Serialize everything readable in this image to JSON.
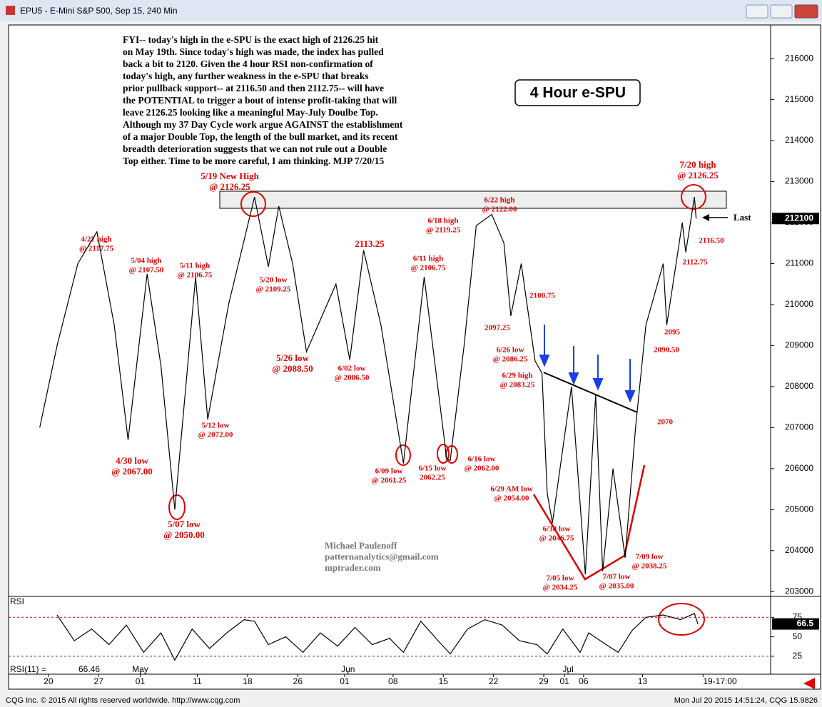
{
  "window": {
    "title": "EPU5 - E-Mini S&P 500, Sep 15, 240 Min"
  },
  "footer": {
    "left": "CQG Inc. © 2015 All rights reserved worldwide. http://www.cqg.com",
    "right": "Mon Jul 20 2015 14:51:24, CQG 15.9826"
  },
  "chart_data": {
    "type": "line",
    "title": "4 Hour e-SPU",
    "color": "#000000",
    "x": [
      18,
      28,
      40,
      51,
      61,
      69,
      80,
      88,
      96,
      108,
      115,
      127,
      142,
      150,
      156,
      164,
      172,
      189,
      197,
      205,
      215,
      228,
      240,
      253,
      255,
      263,
      270,
      279,
      286,
      290,
      296,
      304,
      308,
      311,
      314,
      325,
      333,
      339,
      343,
      349,
      356,
      362,
      368,
      378,
      380,
      389,
      391,
      396,
      397
    ],
    "values": [
      207000,
      209000,
      211000,
      211775,
      209500,
      206700,
      210750,
      208500,
      205000,
      210675,
      207200,
      210000,
      212625,
      210925,
      212400,
      211000,
      208850,
      210500,
      208650,
      211325,
      209500,
      206125,
      210675,
      206225,
      206200,
      209000,
      211925,
      212200,
      211500,
      209725,
      211000,
      208625,
      208325,
      205400,
      204675,
      208000,
      203425,
      207800,
      203500,
      206000,
      203825,
      207000,
      209500,
      211000,
      209500,
      212000,
      211275,
      212625,
      212100
    ],
    "xlim": [
      0,
      440
    ],
    "xticks": [
      {
        "value": 23,
        "label": "20"
      },
      {
        "value": 52,
        "label": "27"
      },
      {
        "value": 76,
        "label": "01"
      },
      {
        "value": 109,
        "label": "11"
      },
      {
        "value": 138,
        "label": "18"
      },
      {
        "value": 167,
        "label": "26"
      },
      {
        "value": 194,
        "label": "01"
      },
      {
        "value": 222,
        "label": "08"
      },
      {
        "value": 251,
        "label": "15"
      },
      {
        "value": 280,
        "label": "22"
      },
      {
        "value": 309,
        "label": "29"
      },
      {
        "value": 321,
        "label": "01"
      },
      {
        "value": 332,
        "label": "06"
      },
      {
        "value": 366,
        "label": "13"
      },
      {
        "value": 401,
        "label": "19-17:00"
      }
    ],
    "months": [
      {
        "value": 76,
        "label": "May"
      },
      {
        "value": 196,
        "label": "Jun"
      },
      {
        "value": 323,
        "label": "Jul"
      }
    ],
    "ylim": [
      202900,
      216820
    ],
    "yticks": [
      203000,
      204000,
      205000,
      206000,
      207000,
      208000,
      209000,
      210000,
      211000,
      212000,
      213000,
      214000,
      215000,
      216000
    ],
    "last": 212100,
    "last_label": "Last",
    "commentary": [
      "FYI-- today's high in the e-SPU is the exact high of 2126.25 hit",
      "on May 19th. Since today's high was made, the index has pulled",
      "back a bit to 2120. Given the 4 hour RSI non-confirmation of",
      "today's high, any further weakness in the e-SPU that breaks",
      "prior pullback support-- at 2116.50 and then 2112.75-- will have",
      "the POTENTIAL to trigger a bout of intense profit-taking that will",
      "leave 2126.25 looking like a meaningful May-July Doulbe Top.",
      "Although my 37 Day Cycle work argue AGAINST the establishment",
      "of a major Double Top, the length of the bull market, and its recent",
      "breadth deterioration suggests that we can not rule out a Double",
      "Top either. Time to be more careful, I am thinking. MJP 7/20/15"
    ],
    "annotations": [
      {
        "lines": [
          "4/27 high",
          "@ 2117.75"
        ]
      },
      {
        "lines": [
          "5/04 high",
          "@ 2107.50"
        ]
      },
      {
        "lines": [
          "5/11 high",
          "@ 2106.75"
        ]
      },
      {
        "lines": [
          "5/19 New High",
          "@ 2126.25"
        ]
      },
      {
        "lines": [
          "5/20 low",
          "@ 2109.25"
        ]
      },
      {
        "lines": [
          "4/30 low",
          "@ 2067.00"
        ]
      },
      {
        "lines": [
          "5/07 low",
          "@ 2050.00"
        ]
      },
      {
        "lines": [
          "5/12 low",
          "@ 2072.00"
        ]
      },
      {
        "lines": [
          "5/26 low",
          "@ 2088.50"
        ]
      },
      {
        "lines": [
          "2113.25"
        ]
      },
      {
        "lines": [
          "6/02 low",
          "@ 2086.50"
        ]
      },
      {
        "lines": [
          "6/11 high",
          "@ 2106.75"
        ]
      },
      {
        "lines": [
          "6/18 high",
          "@ 2119.25"
        ]
      },
      {
        "lines": [
          "6/22 high",
          "@ 2122.00"
        ]
      },
      {
        "lines": [
          "6/09 low",
          "@ 2061.25"
        ]
      },
      {
        "lines": [
          "6/15 low",
          "2062.25"
        ]
      },
      {
        "lines": [
          "6/16 low",
          "@ 2062.00"
        ]
      },
      {
        "lines": [
          "2100.75"
        ]
      },
      {
        "lines": [
          "2097.25"
        ]
      },
      {
        "lines": [
          "6/26 low",
          "@ 2086.25"
        ]
      },
      {
        "lines": [
          "6/29 high",
          "@ 2083.25"
        ]
      },
      {
        "lines": [
          "6/29 AM low",
          "@ 2054.00"
        ]
      },
      {
        "lines": [
          "6/30 low",
          "@ 2046.75"
        ]
      },
      {
        "lines": [
          "7/05 low",
          "@ 2034.25"
        ]
      },
      {
        "lines": [
          "7/07 low",
          "@ 2035.00"
        ]
      },
      {
        "lines": [
          "7/09 low",
          "@ 2038.25"
        ]
      },
      {
        "lines": [
          "2070"
        ]
      },
      {
        "lines": [
          "2095"
        ]
      },
      {
        "lines": [
          "2090.50"
        ]
      },
      {
        "lines": [
          "2112.75"
        ]
      },
      {
        "lines": [
          "2116.50"
        ]
      },
      {
        "lines": [
          "7/20 high",
          "@ 2126.25"
        ]
      }
    ],
    "watermark": [
      "Michael Paulenoff",
      "patternanalytics@gmail.com",
      "mptrader.com"
    ],
    "rsi": {
      "label": "RSI",
      "readout_label": "RSI(11) =",
      "color": "#000000",
      "x": [
        28,
        38,
        48,
        58,
        68,
        78,
        88,
        96,
        106,
        116,
        126,
        136,
        142,
        150,
        160,
        170,
        180,
        190,
        200,
        210,
        220,
        228,
        238,
        248,
        255,
        265,
        275,
        285,
        295,
        305,
        311,
        320,
        330,
        335,
        345,
        352,
        360,
        368,
        378,
        388,
        396,
        398
      ],
      "values": [
        78,
        45,
        60,
        40,
        65,
        30,
        55,
        20,
        60,
        35,
        55,
        72,
        70,
        40,
        50,
        30,
        55,
        38,
        62,
        40,
        48,
        30,
        70,
        45,
        28,
        60,
        72,
        65,
        45,
        40,
        28,
        60,
        30,
        55,
        40,
        30,
        58,
        75,
        78,
        72,
        80,
        66.46
      ],
      "ylim": [
        2,
        100
      ],
      "yticks": [
        25,
        50,
        75
      ],
      "last": 66.5
    }
  }
}
